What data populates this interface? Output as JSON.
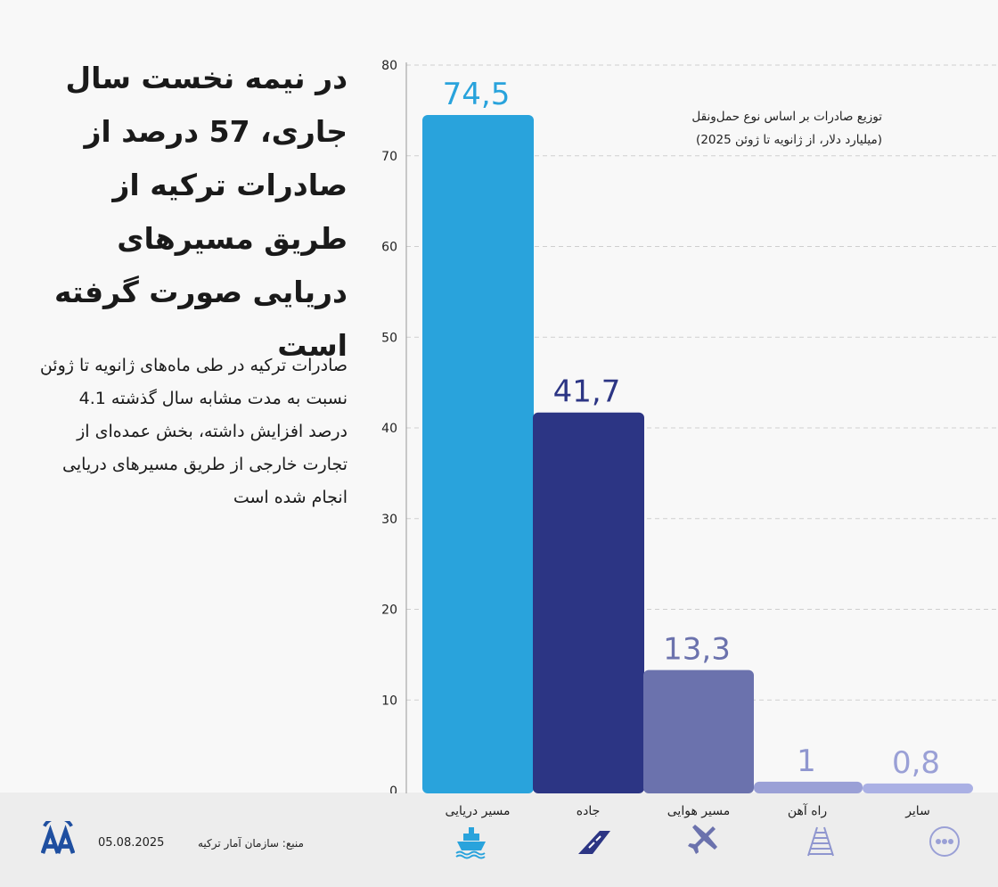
{
  "headline": "در نیمه نخست سال جاری، 57 درصد از صادرات ترکیه از طریق مسیرهای دریایی صورت گرفته است",
  "body": "صادرات ترکیه در طی ماه‌های ژانویه تا ژوئن نسبت به مدت مشابه سال گذشته 4.1 درصد افزایش داشته، بخش عمده‌ای از تجارت خارجی  از طریق مسیرهای دریایی انجام شده است",
  "chart_data": {
    "type": "bar",
    "title": "توزیع صادرات بر اساس نوع حمل‌ونقل",
    "subtitle": "(میلیارد دلار، از ژانویه تا ژوئن 2025)",
    "categories": [
      "مسیر دریایی",
      "جاده",
      "مسیر هوایی",
      "راه آهن",
      "سایر"
    ],
    "values": [
      74.5,
      41.7,
      13.3,
      1,
      0.8
    ],
    "value_labels": [
      "74,5",
      "41,7",
      "13,3",
      "1",
      "0,8"
    ],
    "colors": [
      "#29a3dc",
      "#2c3584",
      "#6b72ad",
      "#9aa0d6",
      "#aab0e4"
    ],
    "label_colors": [
      "#29a3dc",
      "#2c3584",
      "#6b72ad",
      "#8f96cf",
      "#9aa0d6"
    ],
    "yticks": [
      0,
      10,
      20,
      30,
      40,
      50,
      60,
      70,
      80
    ],
    "ylim": [
      0,
      80
    ],
    "grid": true
  },
  "icons": [
    "ship-icon",
    "road-icon",
    "airplane-icon",
    "railway-icon",
    "more-icon"
  ],
  "footer": {
    "date": "05.08.2025",
    "source": "منبع: سازمان آمار ترکیه",
    "logo": "AA"
  }
}
